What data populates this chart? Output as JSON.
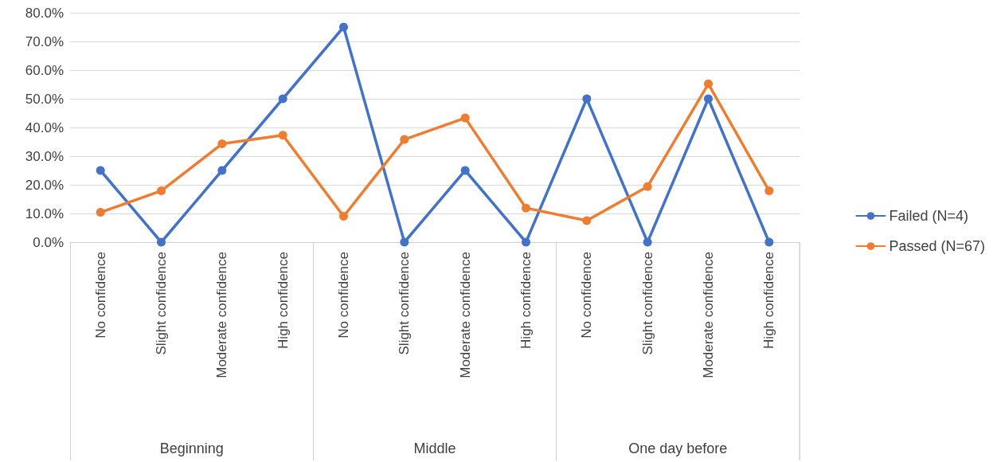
{
  "chart_data": {
    "type": "line",
    "categories": [
      "No confidence",
      "Slight confidence",
      "Moderate confidence",
      "High confidence",
      "No confidence",
      "Slight confidence",
      "Moderate confidence",
      "High confidence",
      "No confidence",
      "Slight confidence",
      "Moderate confidence",
      "High confidence"
    ],
    "annotations": [
      "Beginning",
      "Middle",
      "One day before"
    ],
    "series": [
      {
        "name": "Failed (N=4)",
        "color": "#4472c4",
        "values": [
          25,
          0,
          25,
          50,
          75,
          0,
          25,
          0,
          50,
          0,
          50,
          0
        ]
      },
      {
        "name": "Passed (N=67)",
        "color": "#ed7d31",
        "values": [
          10.4,
          17.9,
          34.3,
          37.3,
          9.0,
          35.8,
          43.3,
          11.9,
          7.5,
          19.4,
          55.2,
          17.9
        ]
      }
    ],
    "ylim": [
      0,
      80
    ],
    "yticks": [
      {
        "value": 0,
        "label": "0.0%"
      },
      {
        "value": 10,
        "label": "10.0%"
      },
      {
        "value": 20,
        "label": "20.0%"
      },
      {
        "value": 30,
        "label": "30.0%"
      },
      {
        "value": 40,
        "label": "40.0%"
      },
      {
        "value": 50,
        "label": "50.0%"
      },
      {
        "value": 60,
        "label": "60.0%"
      },
      {
        "value": 70,
        "label": "70.0%"
      },
      {
        "value": 80,
        "label": "80.0%"
      }
    ],
    "grid": "y",
    "legend": "right",
    "marker": "circle",
    "line_style": "solid"
  }
}
